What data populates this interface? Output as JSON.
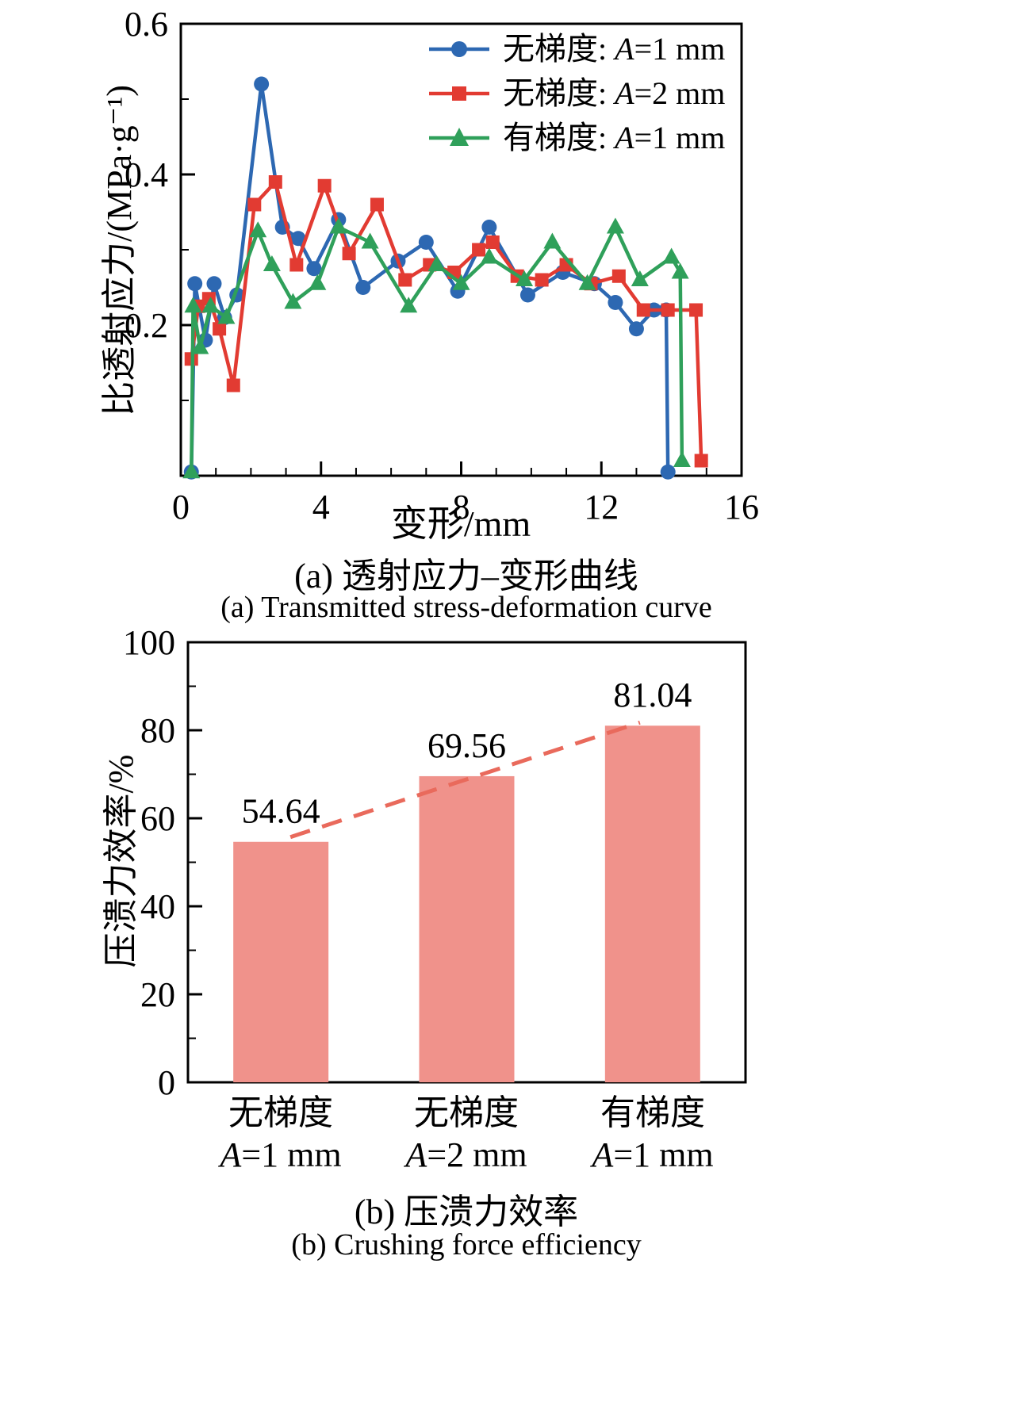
{
  "page": {
    "background": "#ffffff"
  },
  "figure": {
    "panel_a": {
      "xlabel": "变形/mm",
      "ylabel": "比透射应力/(MPa·g⁻¹)",
      "caption_zh": "(a) 透射应力–变形曲线",
      "caption_en": "(a) Transmitted stress-deformation curve"
    },
    "panel_b": {
      "ylabel": "压溃力效率/%",
      "caption_zh": "(b) 压溃力效率",
      "caption_en": "(b) Crushing force efficiency"
    }
  },
  "chart_data": [
    {
      "type": "line",
      "xlabel": "变形/mm",
      "ylabel": "比透射应力/(MPa·g⁻¹)",
      "xlim": [
        0,
        16
      ],
      "ylim": [
        0,
        0.6
      ],
      "xticks": [
        0,
        4,
        8,
        12,
        16
      ],
      "xtick_labels": [
        "0",
        "4",
        "8",
        "12",
        "16"
      ],
      "xminor": [
        1,
        2,
        3,
        5,
        6,
        7,
        9,
        10,
        11,
        13,
        14,
        15
      ],
      "yticks": [
        0.2,
        0.4,
        0.6
      ],
      "ytick_labels": [
        "0.2",
        "0.4",
        "0.6"
      ],
      "yminor": [
        0.1,
        0.3,
        0.5
      ],
      "grid": false,
      "legend_position": "top-right-inside",
      "series": [
        {
          "name": "无梯度: A=1 mm",
          "name_prefix": "无梯度: ",
          "name_var": "A",
          "name_rest": "=1 mm",
          "marker": "circle",
          "color": "#2d68b2",
          "points": [
            [
              0.3,
              0.005
            ],
            [
              0.4,
              0.255
            ],
            [
              0.7,
              0.18
            ],
            [
              0.95,
              0.255
            ],
            [
              1.25,
              0.21
            ],
            [
              1.6,
              0.24
            ],
            [
              2.3,
              0.52
            ],
            [
              2.9,
              0.33
            ],
            [
              3.35,
              0.315
            ],
            [
              3.8,
              0.275
            ],
            [
              4.5,
              0.34
            ],
            [
              5.2,
              0.25
            ],
            [
              6.2,
              0.285
            ],
            [
              7.0,
              0.31
            ],
            [
              7.9,
              0.245
            ],
            [
              8.8,
              0.33
            ],
            [
              9.9,
              0.24
            ],
            [
              10.9,
              0.27
            ],
            [
              11.8,
              0.255
            ],
            [
              12.4,
              0.23
            ],
            [
              13.0,
              0.195
            ],
            [
              13.5,
              0.22
            ],
            [
              13.85,
              0.22
            ],
            [
              13.9,
              0.005
            ]
          ]
        },
        {
          "name": "无梯度: A=2 mm",
          "name_prefix": "无梯度: ",
          "name_var": "A",
          "name_rest": "=2 mm",
          "marker": "square",
          "color": "#e23b32",
          "points": [
            [
              0.3,
              0.155
            ],
            [
              0.5,
              0.225
            ],
            [
              0.8,
              0.235
            ],
            [
              1.1,
              0.195
            ],
            [
              1.5,
              0.12
            ],
            [
              2.1,
              0.36
            ],
            [
              2.7,
              0.39
            ],
            [
              3.3,
              0.28
            ],
            [
              4.1,
              0.385
            ],
            [
              4.8,
              0.295
            ],
            [
              5.6,
              0.36
            ],
            [
              6.4,
              0.26
            ],
            [
              7.1,
              0.28
            ],
            [
              7.8,
              0.27
            ],
            [
              8.5,
              0.3
            ],
            [
              8.9,
              0.31
            ],
            [
              9.6,
              0.265
            ],
            [
              10.3,
              0.26
            ],
            [
              11.0,
              0.28
            ],
            [
              11.7,
              0.255
            ],
            [
              12.5,
              0.265
            ],
            [
              13.2,
              0.22
            ],
            [
              13.9,
              0.22
            ],
            [
              14.7,
              0.22
            ],
            [
              14.85,
              0.02
            ]
          ]
        },
        {
          "name": "有梯度: A=1 mm",
          "name_prefix": "有梯度: ",
          "name_var": "A",
          "name_rest": "=1 mm",
          "marker": "triangle",
          "color": "#2fa05a",
          "points": [
            [
              0.3,
              0.005
            ],
            [
              0.35,
              0.225
            ],
            [
              0.55,
              0.17
            ],
            [
              0.85,
              0.225
            ],
            [
              1.3,
              0.21
            ],
            [
              2.2,
              0.325
            ],
            [
              2.6,
              0.28
            ],
            [
              3.2,
              0.23
            ],
            [
              3.9,
              0.255
            ],
            [
              4.5,
              0.33
            ],
            [
              5.4,
              0.31
            ],
            [
              6.5,
              0.225
            ],
            [
              7.3,
              0.28
            ],
            [
              8.0,
              0.255
            ],
            [
              8.8,
              0.29
            ],
            [
              9.8,
              0.26
            ],
            [
              10.6,
              0.31
            ],
            [
              11.6,
              0.255
            ],
            [
              12.4,
              0.33
            ],
            [
              13.1,
              0.26
            ],
            [
              14.0,
              0.29
            ],
            [
              14.25,
              0.27
            ],
            [
              14.3,
              0.02
            ]
          ]
        }
      ]
    },
    {
      "type": "bar",
      "categories": [
        "无梯度 A=1 mm",
        "无梯度 A=2 mm",
        "有梯度 A=1 mm"
      ],
      "cat_top": [
        "无梯度",
        "无梯度",
        "有梯度"
      ],
      "cat_var": [
        "A",
        "A",
        "A"
      ],
      "cat_rest": [
        "=1 mm",
        "=2 mm",
        "=1 mm"
      ],
      "values": [
        54.64,
        69.56,
        81.04
      ],
      "value_labels": [
        "54.64",
        "69.56",
        "81.04"
      ],
      "ylabel": "压溃力效率/%",
      "ylim": [
        0,
        100
      ],
      "yticks": [
        0,
        20,
        40,
        60,
        80,
        100
      ],
      "ytick_labels": [
        "0",
        "20",
        "40",
        "60",
        "80",
        "100"
      ],
      "yminor": [
        10,
        30,
        50,
        70,
        90
      ],
      "grid": false,
      "legend_position": "none",
      "bar_color": "#f0928b",
      "trend_color": "#e96a5c"
    }
  ]
}
